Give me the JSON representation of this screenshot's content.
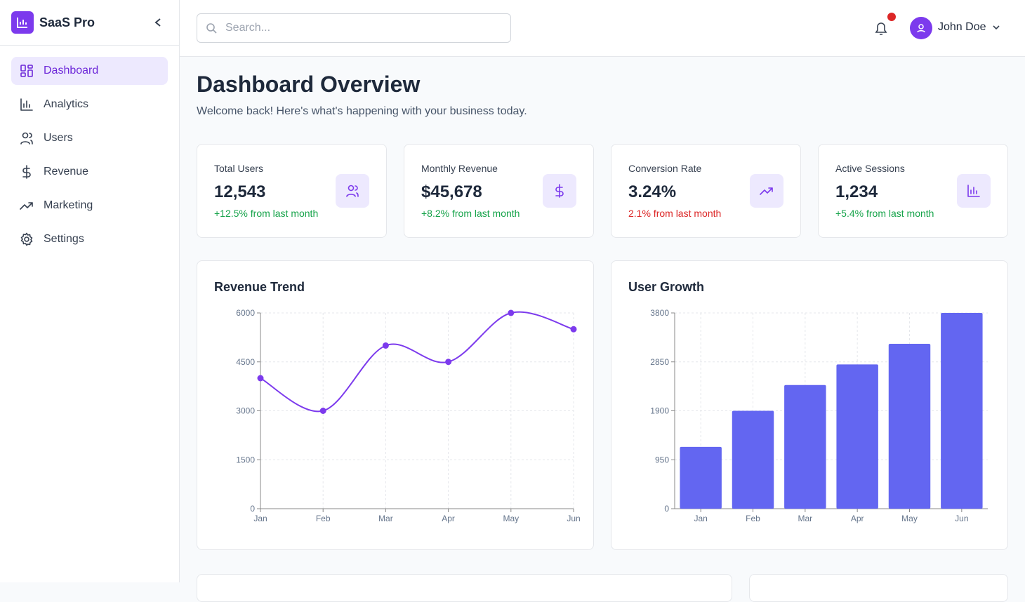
{
  "sidebar": {
    "brand": "SaaS Pro",
    "nav": [
      "Dashboard",
      "Analytics",
      "Users",
      "Revenue",
      "Marketing",
      "Settings"
    ]
  },
  "header": {
    "search_placeholder": "Search...",
    "user": "John Doe"
  },
  "page": {
    "title": "Dashboard Overview",
    "subtitle": "Welcome back! Here's what's happening with your business today."
  },
  "stats": [
    {
      "label": "Total Users",
      "value": "12,543",
      "change": "+12.5% from last month",
      "change_color": "#16a34a"
    },
    {
      "label": "Monthly Revenue",
      "value": "$45,678",
      "change": "+8.2% from last month",
      "change_color": "#16a34a"
    },
    {
      "label": "Conversion Rate",
      "value": "3.24%",
      "change": "2.1% from last month",
      "change_color": "#dc2626"
    },
    {
      "label": "Active Sessions",
      "value": "1,234",
      "change": "+5.4% from last month",
      "change_color": "#16a34a"
    }
  ],
  "chart_data": [
    {
      "type": "line",
      "title": "Revenue Trend",
      "categories": [
        "Jan",
        "Feb",
        "Mar",
        "Apr",
        "May",
        "Jun"
      ],
      "values": [
        4000,
        3000,
        5000,
        4500,
        6000,
        5500
      ],
      "color": "#7c3aed",
      "ylim": [
        0,
        6000
      ],
      "yticks": [
        0,
        1500,
        3000,
        4500,
        6000
      ],
      "grid": true
    },
    {
      "type": "bar",
      "title": "User Growth",
      "categories": [
        "Jan",
        "Feb",
        "Mar",
        "Apr",
        "May",
        "Jun"
      ],
      "values": [
        1200,
        1900,
        2400,
        2800,
        3200,
        3800
      ],
      "color": "#6366f1",
      "ylim": [
        0,
        3800
      ],
      "yticks": [
        0,
        950,
        1900,
        2850,
        3800
      ],
      "grid": true
    }
  ]
}
